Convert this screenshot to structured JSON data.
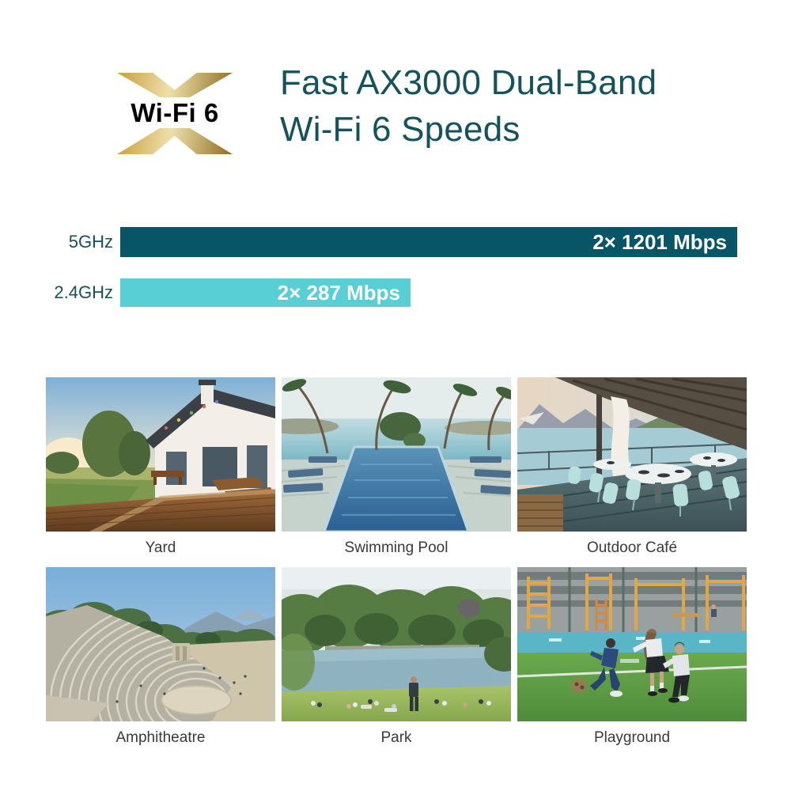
{
  "page": {
    "background": "#ffffff"
  },
  "header": {
    "logo": {
      "text": "Wi-Fi 6"
    },
    "title_line1": "Fast AX3000 Dual-Band",
    "title_line2": "Wi-Fi 6 Speeds"
  },
  "colors": {
    "title_text": "#14525c",
    "band_label_text": "#15505c",
    "bar_5ghz": "#075566",
    "bar_24ghz": "#58cfd5",
    "bar_value_text": "#ffffff",
    "caption_text": "#3a3a3a",
    "logo_gold_light": "#eee0aa",
    "logo_gold_dark": "#8d6d1f"
  },
  "chart_data": {
    "type": "bar",
    "orientation": "horizontal",
    "categories": [
      "5GHz",
      "2.4GHz"
    ],
    "values": [
      1201,
      287
    ],
    "unit": "Mbps",
    "bar_labels": [
      "2× 1201 Mbps",
      "2× 287 Mbps"
    ],
    "bar_colors": [
      "#075566",
      "#58cfd5"
    ],
    "bar_relative_widths": [
      1.0,
      0.47
    ],
    "grid": false,
    "legend": false
  },
  "gallery": {
    "items": [
      {
        "caption": "Yard"
      },
      {
        "caption": "Swimming Pool"
      },
      {
        "caption": "Outdoor Café"
      },
      {
        "caption": "Amphitheatre"
      },
      {
        "caption": "Park"
      },
      {
        "caption": "Playground"
      }
    ]
  }
}
